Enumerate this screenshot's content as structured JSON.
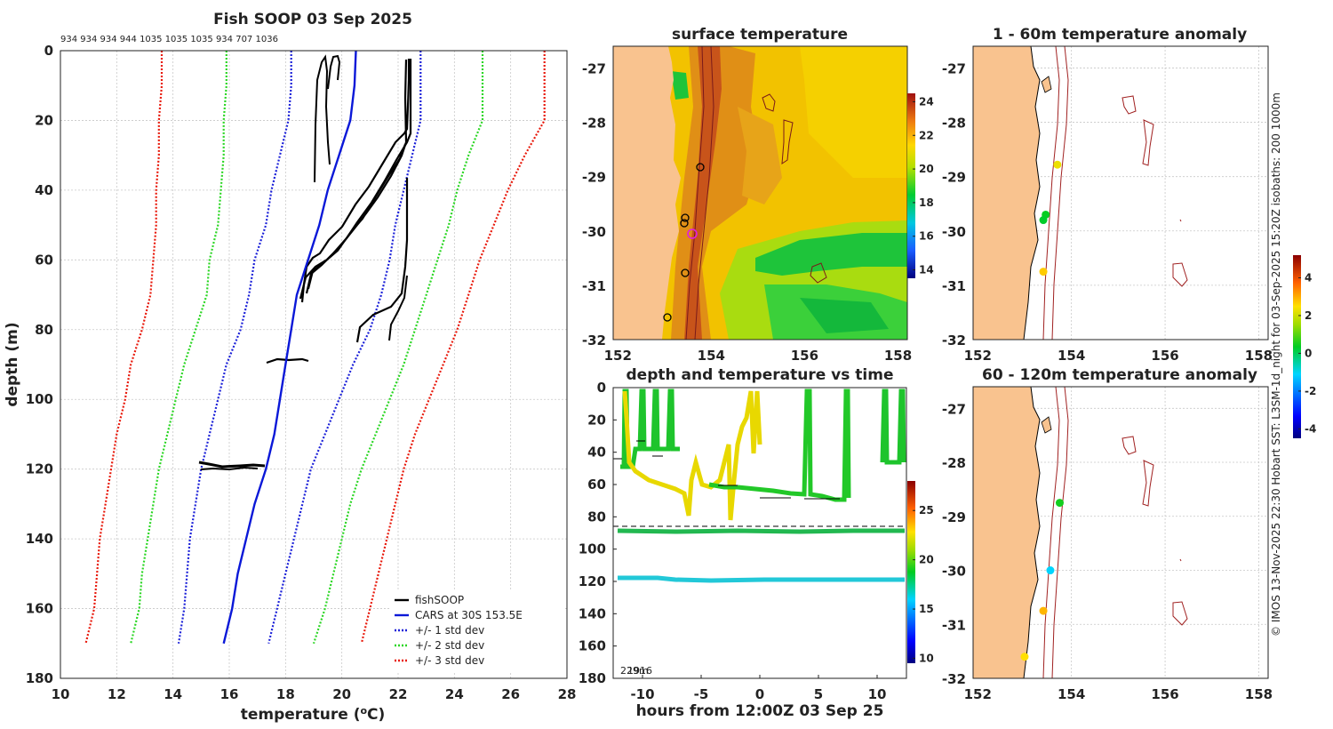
{
  "chart_data": [
    {
      "type": "line",
      "title": "Fish SOOP 03 Sep 2025",
      "top_label": "934 934 934 944 1035 1035 1035 934 707 1036",
      "xlabel": "temperature (",
      "xlabel_sup": "o",
      "xlabel_tail": "C)",
      "ylabel": "depth (m)",
      "xlim": [
        10,
        28
      ],
      "ylim": [
        180,
        0
      ],
      "xticks": [
        "10",
        "12",
        "14",
        "16",
        "18",
        "20",
        "22",
        "24",
        "26",
        "28"
      ],
      "yticks": [
        "0",
        "20",
        "40",
        "60",
        "80",
        "100",
        "120",
        "140",
        "160",
        "180"
      ],
      "depth": [
        0,
        10,
        20,
        30,
        40,
        50,
        60,
        70,
        80,
        90,
        100,
        110,
        120,
        130,
        140,
        150,
        160,
        170
      ],
      "cars": [
        20.5,
        20.45,
        20.3,
        19.9,
        19.5,
        19.2,
        18.8,
        18.4,
        18.2,
        18.0,
        17.8,
        17.6,
        17.3,
        16.9,
        16.6,
        16.3,
        16.1,
        15.8
      ],
      "std_lines": [
        {
          "name": "+/- 3 std dev",
          "color": "#e8190b",
          "left": [
            13.6,
            13.6,
            13.5,
            13.5,
            13.4,
            13.4,
            13.3,
            13.2,
            12.9,
            12.5,
            12.3,
            12.0,
            11.8,
            11.6,
            11.4,
            11.3,
            11.2,
            10.9
          ],
          "right": [
            27.2,
            27.2,
            27.2,
            26.5,
            25.9,
            25.4,
            24.9,
            24.5,
            24.1,
            23.6,
            23.1,
            22.6,
            22.2,
            21.9,
            21.6,
            21.3,
            21.0,
            20.7
          ]
        },
        {
          "name": "+/- 2 std dev",
          "color": "#2ad623",
          "left": [
            15.9,
            15.9,
            15.8,
            15.8,
            15.7,
            15.6,
            15.3,
            15.2,
            14.8,
            14.4,
            14.1,
            13.8,
            13.5,
            13.3,
            13.1,
            12.9,
            12.8,
            12.5
          ],
          "right": [
            25.0,
            25.0,
            25.0,
            24.5,
            24.1,
            23.8,
            23.4,
            23.0,
            22.6,
            22.2,
            21.7,
            21.2,
            20.7,
            20.3,
            20.0,
            19.7,
            19.4,
            19.0
          ]
        },
        {
          "name": "+/- 1 std dev",
          "color": "#1b20d8",
          "left": [
            18.2,
            18.2,
            18.1,
            17.8,
            17.5,
            17.3,
            16.9,
            16.7,
            16.4,
            15.9,
            15.6,
            15.3,
            15.0,
            14.8,
            14.6,
            14.5,
            14.4,
            14.2
          ],
          "right": [
            22.8,
            22.8,
            22.8,
            22.5,
            22.2,
            21.9,
            21.7,
            21.4,
            21.0,
            20.4,
            19.9,
            19.4,
            18.9,
            18.6,
            18.3,
            18.0,
            17.7,
            17.4
          ]
        }
      ],
      "legend": [
        "fishSOOP",
        "CARS at 30S 153.5E",
        "+/- 1 std dev",
        "+/- 2 std dev",
        "+/- 3 std dev"
      ],
      "legend_colors": [
        "#000000",
        "#0a18d8",
        "#1b20d8",
        "#2ad623",
        "#e8190b"
      ]
    },
    {
      "type": "heatmap",
      "title": "surface temperature",
      "xticks": [
        "152",
        "154",
        "156",
        "158"
      ],
      "yticks": [
        "-27",
        "-28",
        "-29",
        "-30",
        "-31",
        "-32"
      ],
      "xlim": [
        151.9,
        158.2
      ],
      "ylim": [
        -32,
        -26.6
      ],
      "colorbar_ticks": [
        "24",
        "22",
        "20",
        "18",
        "16",
        "14"
      ],
      "colorbar_range": [
        13.5,
        24.5
      ]
    },
    {
      "type": "scatter",
      "title": "1 - 60m temperature anomaly",
      "xticks": [
        "152",
        "154",
        "156",
        "158"
      ],
      "yticks": [
        "-27",
        "-28",
        "-29",
        "-30",
        "-31",
        "-32"
      ],
      "points": [
        {
          "lon": 153.7,
          "lat": -28.78,
          "anomaly": 2.3
        },
        {
          "lon": 153.45,
          "lat": -29.7,
          "anomaly": 0.4
        },
        {
          "lon": 153.4,
          "lat": -29.8,
          "anomaly": 0.3
        },
        {
          "lon": 153.4,
          "lat": -30.75,
          "anomaly": 2.7
        }
      ]
    },
    {
      "type": "scatter",
      "title": "60 - 120m temperature anomaly",
      "xticks": [
        "152",
        "154",
        "156",
        "158"
      ],
      "yticks": [
        "-27",
        "-28",
        "-29",
        "-30",
        "-31",
        "-32"
      ],
      "points": [
        {
          "lon": 153.75,
          "lat": -28.75,
          "anomaly": 0.5
        },
        {
          "lon": 153.55,
          "lat": -30.0,
          "anomaly": -1.1
        },
        {
          "lon": 153.4,
          "lat": -30.75,
          "anomaly": 2.9
        },
        {
          "lon": 153.0,
          "lat": -31.6,
          "anomaly": 2.5
        }
      ],
      "colorbar_ticks": [
        "4",
        "2",
        "0",
        "-2",
        "-4"
      ],
      "colorbar_range": [
        -4.5,
        5.2
      ]
    },
    {
      "type": "scatter",
      "title": "depth and temperature vs time",
      "xlabel": "hours from 12:00Z 03 Sep 25",
      "xticks": [
        "-10",
        "-5",
        "0",
        "5",
        "10"
      ],
      "yticks": [
        "0",
        "20",
        "40",
        "60",
        "80",
        "100",
        "120",
        "140",
        "160",
        "180"
      ],
      "xlim": [
        -12.5,
        12.5
      ],
      "ylim": [
        180,
        0
      ],
      "corner_label": "229m",
      "corner_label_overlap": "1916",
      "colorbar_ticks": [
        "25",
        "20",
        "15",
        "10"
      ],
      "colorbar_range": [
        9.5,
        28
      ]
    }
  ],
  "side_note": "© IMOS 13-Nov-2025 22:30 Hobart SST: L3SM-1d_night for 03-Sep-2025 15:20Z isobaths: 200  1000m"
}
